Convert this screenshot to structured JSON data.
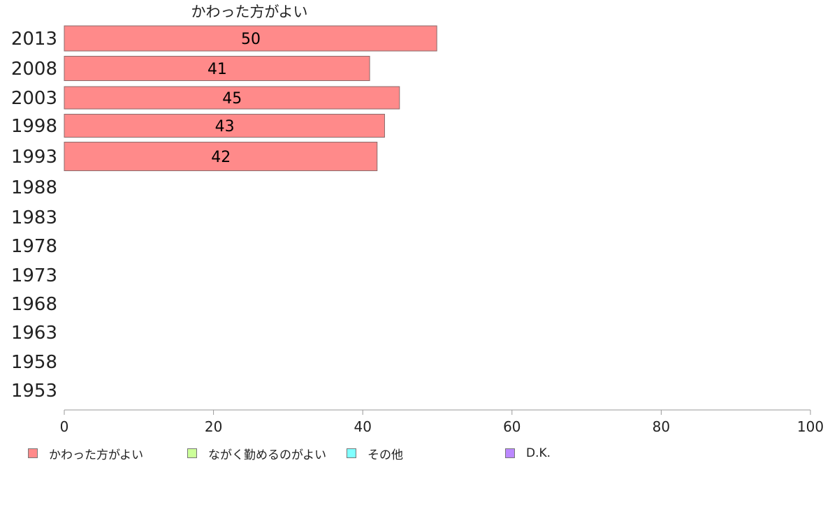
{
  "chart_data": {
    "type": "bar",
    "orientation": "horizontal",
    "title": "かわった方がよい",
    "categories": [
      "2013",
      "2008",
      "2003",
      "1998",
      "1993",
      "1988",
      "1983",
      "1978",
      "1973",
      "1968",
      "1963",
      "1958",
      "1953"
    ],
    "series": [
      {
        "name": "かわった方がよい",
        "values": [
          50,
          41,
          45,
          43,
          42,
          null,
          null,
          null,
          null,
          null,
          null,
          null,
          null
        ]
      }
    ],
    "data_labels": [
      "50",
      "41",
      "45",
      "43",
      "42"
    ],
    "xlim": [
      0,
      100
    ],
    "x_ticks": [
      "0",
      "20",
      "40",
      "60",
      "80",
      "100"
    ],
    "grid": false,
    "legend": {
      "placement": "bottom",
      "entries": [
        {
          "name": "かわった方がよい",
          "color": "#ff8a8a"
        },
        {
          "name": "ながく勤めるのがよい",
          "color": "#ccff99"
        },
        {
          "name": "その他",
          "color": "#80ffff"
        },
        {
          "name": "D.K.",
          "color": "#bb88ff"
        }
      ]
    },
    "colors": {
      "bar": "#ff8a8a",
      "bar_edge": "#8a6a6a",
      "axis": "#999999"
    }
  }
}
